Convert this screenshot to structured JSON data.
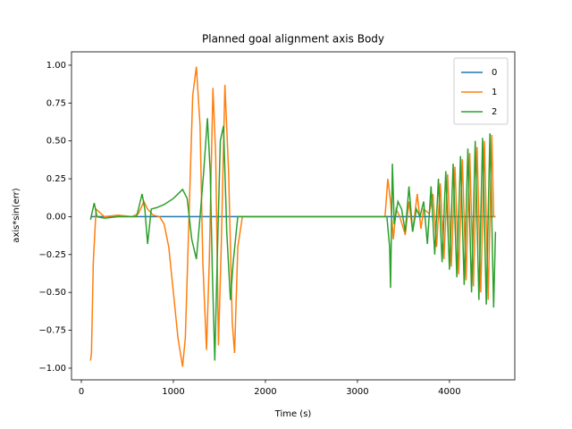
{
  "chart_data": {
    "type": "line",
    "title": "Planned goal alignment axis Body",
    "x_label": "Time (s)",
    "y_label": "axis*sin(err)",
    "xlim": [
      -107,
      4710
    ],
    "ylim": [
      -1.077,
      1.088
    ],
    "xticks": [
      0,
      1000,
      2000,
      3000,
      4000
    ],
    "yticks": [
      {
        "value": -1,
        "label": "−1.00"
      },
      {
        "value": -0.75,
        "label": "−0.75"
      },
      {
        "value": -0.5,
        "label": "−0.50"
      },
      {
        "value": -0.25,
        "label": "−0.25"
      },
      {
        "value": 0,
        "label": "0.00"
      },
      {
        "value": 0.25,
        "label": "0.25"
      },
      {
        "value": 0.5,
        "label": "0.50"
      },
      {
        "value": 0.75,
        "label": "0.75"
      },
      {
        "value": 1,
        "label": "1.00"
      }
    ],
    "legend": "upper right",
    "series": [
      {
        "name": "0",
        "color": "#1f77b4",
        "x": [
          100,
          4500
        ],
        "values": [
          0,
          0
        ]
      },
      {
        "name": "1",
        "color": "#ff7f0e",
        "x": [
          100,
          110,
          130,
          160,
          250,
          400,
          550,
          620,
          680,
          720,
          780,
          850,
          900,
          950,
          1000,
          1050,
          1100,
          1130,
          1170,
          1210,
          1250,
          1290,
          1320,
          1360,
          1390,
          1430,
          1460,
          1490,
          1520,
          1560,
          1600,
          1640,
          1665,
          1700,
          1750,
          2000,
          2500,
          3000,
          3300,
          3330,
          3360,
          3390,
          3420,
          3460,
          3520,
          3560,
          3600,
          3650,
          3690,
          3720,
          3780,
          3820,
          3860,
          3900,
          3940,
          3980,
          4020,
          4060,
          4100,
          4140,
          4180,
          4220,
          4260,
          4300,
          4340,
          4380,
          4420,
          4460,
          4480,
          4500
        ],
        "values": [
          -0.95,
          -0.9,
          -0.3,
          0.05,
          0.0,
          0.01,
          0.0,
          0.02,
          0.1,
          0.05,
          0.01,
          0.0,
          -0.05,
          -0.2,
          -0.5,
          -0.8,
          -0.99,
          -0.8,
          0.0,
          0.8,
          0.99,
          0.6,
          -0.3,
          -0.88,
          -0.3,
          0.85,
          0.4,
          -0.85,
          -0.2,
          0.87,
          0.3,
          -0.7,
          -0.9,
          -0.2,
          0.0,
          0.0,
          0.0,
          0.0,
          0.0,
          0.25,
          0.1,
          -0.15,
          0.05,
          0.0,
          -0.12,
          0.1,
          -0.1,
          0.15,
          -0.08,
          0.05,
          0.02,
          0.15,
          -0.2,
          0.22,
          -0.28,
          0.28,
          -0.33,
          0.33,
          -0.38,
          0.38,
          -0.42,
          0.42,
          -0.46,
          0.46,
          -0.5,
          0.5,
          -0.55,
          0.54,
          0.0,
          0.0
        ]
      },
      {
        "name": "2",
        "color": "#2ca02c",
        "x": [
          100,
          140,
          170,
          250,
          400,
          600,
          660,
          690,
          720,
          760,
          820,
          900,
          1000,
          1100,
          1150,
          1200,
          1250,
          1290,
          1330,
          1370,
          1400,
          1425,
          1450,
          1480,
          1510,
          1545,
          1580,
          1620,
          1650,
          1700,
          2000,
          2500,
          3000,
          3320,
          3350,
          3360,
          3380,
          3400,
          3440,
          3480,
          3520,
          3560,
          3600,
          3640,
          3680,
          3720,
          3760,
          3800,
          3840,
          3880,
          3920,
          3960,
          4000,
          4040,
          4080,
          4120,
          4160,
          4200,
          4240,
          4280,
          4320,
          4360,
          4400,
          4440,
          4480,
          4500
        ],
        "values": [
          -0.02,
          0.09,
          0.0,
          -0.01,
          0.0,
          0.0,
          0.15,
          0.05,
          -0.18,
          0.05,
          0.06,
          0.08,
          0.12,
          0.18,
          0.12,
          -0.15,
          -0.28,
          0.0,
          0.3,
          0.65,
          0.3,
          -0.4,
          -0.95,
          -0.2,
          0.5,
          0.6,
          -0.1,
          -0.55,
          -0.3,
          0.0,
          0.0,
          0.0,
          0.0,
          0.0,
          -0.2,
          -0.47,
          0.35,
          -0.05,
          0.1,
          0.05,
          -0.1,
          0.2,
          -0.1,
          0.05,
          0.0,
          0.1,
          -0.18,
          0.2,
          -0.25,
          0.25,
          -0.3,
          0.3,
          -0.35,
          0.35,
          -0.4,
          0.4,
          -0.45,
          0.45,
          -0.5,
          0.5,
          -0.55,
          0.52,
          -0.58,
          0.55,
          -0.6,
          -0.1
        ]
      }
    ]
  }
}
